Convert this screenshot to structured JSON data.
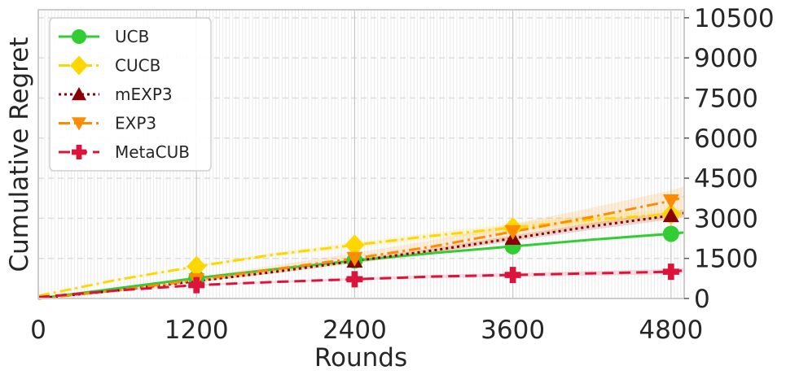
{
  "chart_data": {
    "type": "line",
    "xlabel": "Rounds",
    "ylabel": "Cumulative Regret",
    "xlim": [
      0,
      4900
    ],
    "ylim": [
      0,
      10800
    ],
    "xticks": [
      0,
      1200,
      2400,
      3600,
      4800
    ],
    "xtick_labels": [
      "0",
      "1200",
      "2400",
      "3600",
      "4800"
    ],
    "yticks": [
      0,
      1500,
      3000,
      4500,
      6000,
      7500,
      9000,
      10500
    ],
    "ytick_labels": [
      "0",
      "1500",
      "3000",
      "4500",
      "6000",
      "7500",
      "9000",
      "10500"
    ],
    "y_axis_side": "right",
    "grid": true,
    "legend_position": "top-left",
    "series": [
      {
        "name": "UCB",
        "color": "#32cd32",
        "linestyle": "solid",
        "marker": "circle",
        "x": [
          0,
          600,
          1200,
          1800,
          2400,
          3000,
          3600,
          4200,
          4800,
          4900
        ],
        "y": [
          0,
          380,
          760,
          1100,
          1420,
          1700,
          1950,
          2200,
          2420,
          2470
        ],
        "band": 60,
        "marker_x": [
          1200,
          2400,
          3600,
          4800
        ]
      },
      {
        "name": "CUCB",
        "color": "#ffd700",
        "linestyle": "dashdot",
        "marker": "diamond",
        "x": [
          0,
          600,
          1200,
          1800,
          2400,
          3000,
          3600,
          4200,
          4800,
          4900
        ],
        "y": [
          100,
          700,
          1200,
          1650,
          2000,
          2350,
          2650,
          2950,
          3150,
          3200
        ],
        "band": 200,
        "marker_x": [
          1200,
          2400,
          3600,
          4800
        ]
      },
      {
        "name": "mEXP3",
        "color": "#8b0000",
        "linestyle": "dotted",
        "marker": "triangle-up",
        "x": [
          0,
          600,
          1200,
          1800,
          2400,
          3000,
          3600,
          4200,
          4800,
          4900
        ],
        "y": [
          0,
          300,
          650,
          1000,
          1400,
          1800,
          2250,
          2700,
          3100,
          3200
        ],
        "band": 150,
        "marker_x": [
          1200,
          2400,
          3600,
          4800
        ]
      },
      {
        "name": "EXP3",
        "color": "#ff8c00",
        "linestyle": "dashdot",
        "marker": "triangle-down",
        "x": [
          0,
          600,
          1200,
          1800,
          2400,
          3000,
          3600,
          4200,
          4800,
          4900
        ],
        "y": [
          0,
          300,
          700,
          1100,
          1500,
          1950,
          2500,
          3050,
          3650,
          3800
        ],
        "band": 400,
        "marker_x": [
          1200,
          2400,
          3600,
          4800
        ]
      },
      {
        "name": "MetaCUB",
        "color": "#dc143c",
        "linestyle": "dashed",
        "marker": "plus",
        "x": [
          0,
          600,
          1200,
          1800,
          2400,
          3000,
          3600,
          4200,
          4800,
          4900
        ],
        "y": [
          50,
          300,
          500,
          620,
          720,
          820,
          880,
          940,
          1000,
          1050
        ],
        "band": 100,
        "marker_x": [
          1200,
          2400,
          3600,
          4800
        ]
      }
    ]
  }
}
